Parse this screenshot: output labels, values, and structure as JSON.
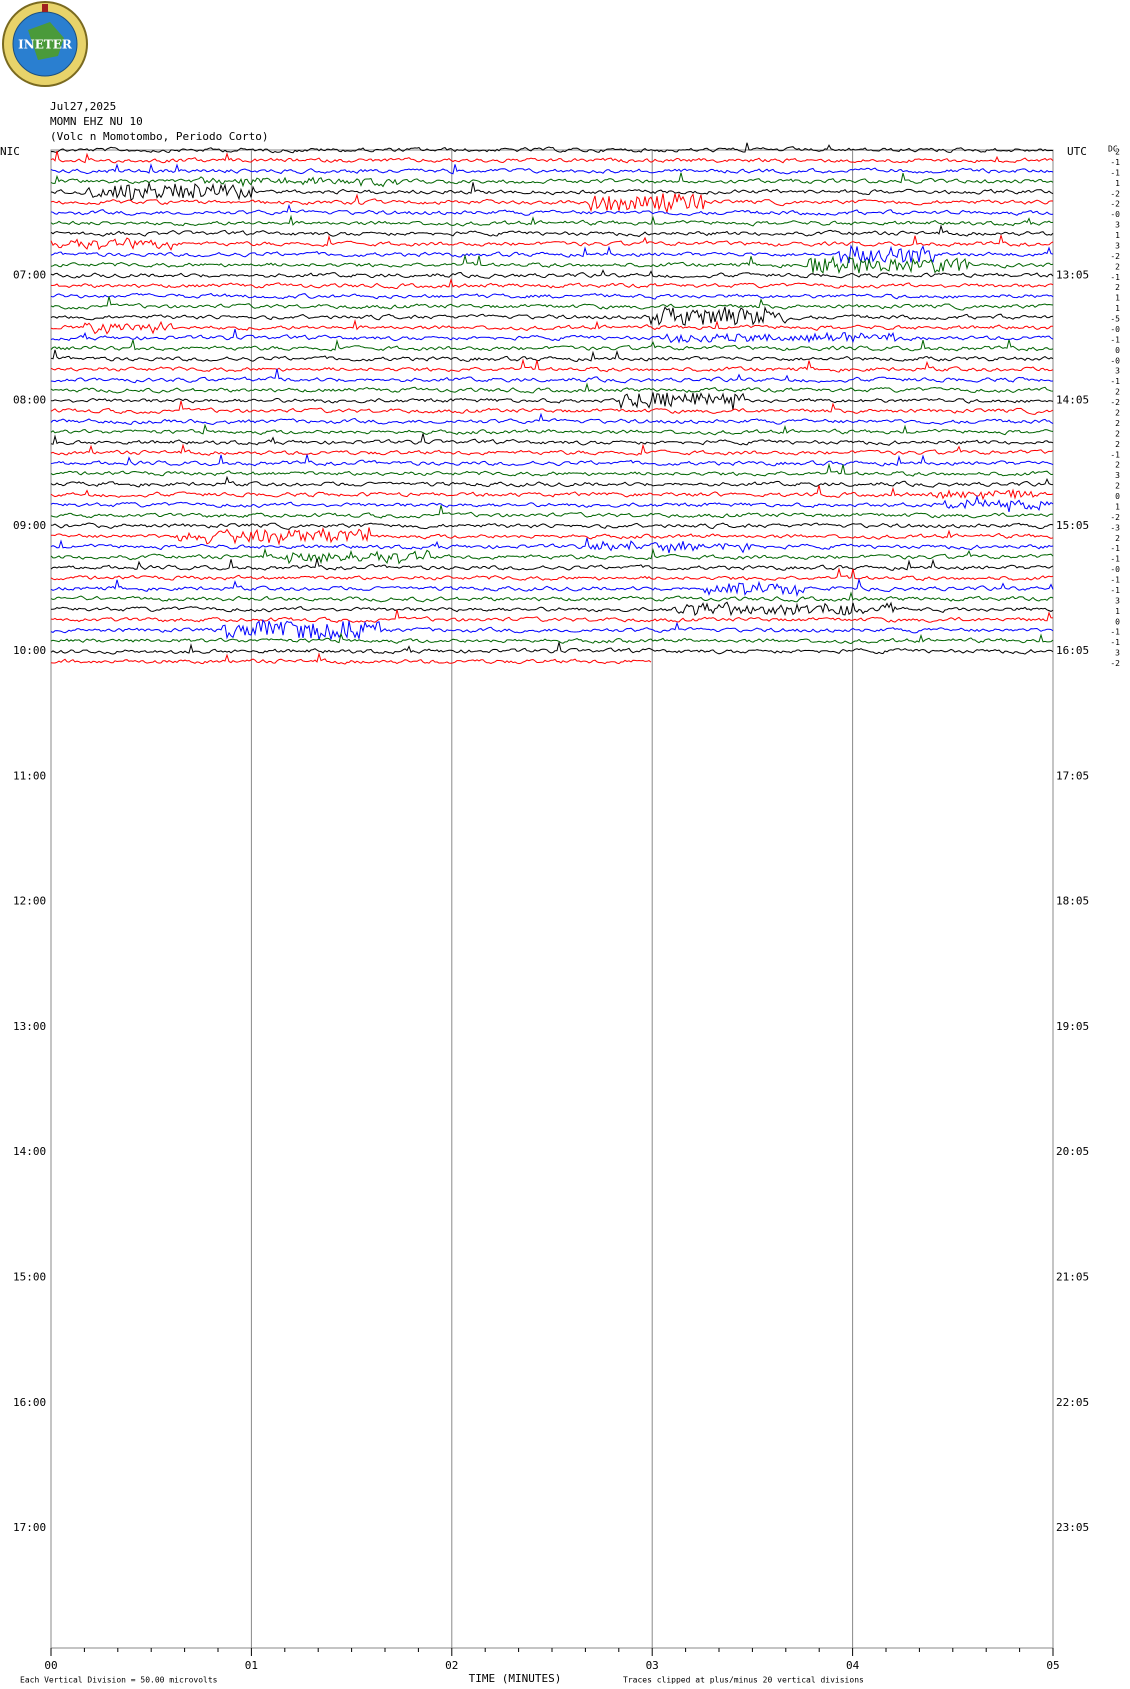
{
  "header": {
    "logo_text": "INETER",
    "date": "Jul27,2025",
    "station": "MOMN EHZ NU 10",
    "description": "(Volc n Momotombo, Periodo Corto)"
  },
  "left_axis": {
    "title": "NIC",
    "labels": [
      "07:00",
      "08:00",
      "09:00",
      "10:00",
      "11:00",
      "12:00",
      "13:00",
      "14:00",
      "15:00",
      "16:00",
      "17:00"
    ]
  },
  "right_axis": {
    "title": "UTC",
    "labels": [
      "13:05",
      "14:05",
      "15:05",
      "16:05",
      "17:05",
      "18:05",
      "19:05",
      "20:05",
      "21:05",
      "22:05",
      "23:05"
    ]
  },
  "dc_title": "DC",
  "dc_offsets": [
    "2",
    "-1",
    "-1",
    "1",
    "-2",
    "-2",
    "-0",
    "3",
    "1",
    "3",
    "-2",
    "2",
    "-1",
    "2",
    "1",
    "1",
    "-5",
    "-0",
    "-1",
    "0",
    "-0",
    "3",
    "-1",
    "2",
    "-2",
    "2",
    "2",
    "2",
    "2",
    "-1",
    "2",
    "3",
    "2",
    "0",
    "1",
    "-2",
    "-3",
    "2",
    "-1",
    "-1",
    "-0",
    "-1",
    "-1",
    "3",
    "1",
    "0",
    "-1",
    "-1",
    "3",
    "-2"
  ],
  "trace_colors": [
    "#000000",
    "#ff0000",
    "#0000ff",
    "#006400"
  ],
  "x_axis": {
    "title": "TIME (MINUTES)",
    "ticks": [
      "00",
      "01",
      "02",
      "03",
      "04",
      "05"
    ]
  },
  "footer": {
    "scale_note": "Each Vertical Division =   50.00 microvolts",
    "clip_note": "Traces clipped at plus/minus 20 vertical divisions"
  }
}
